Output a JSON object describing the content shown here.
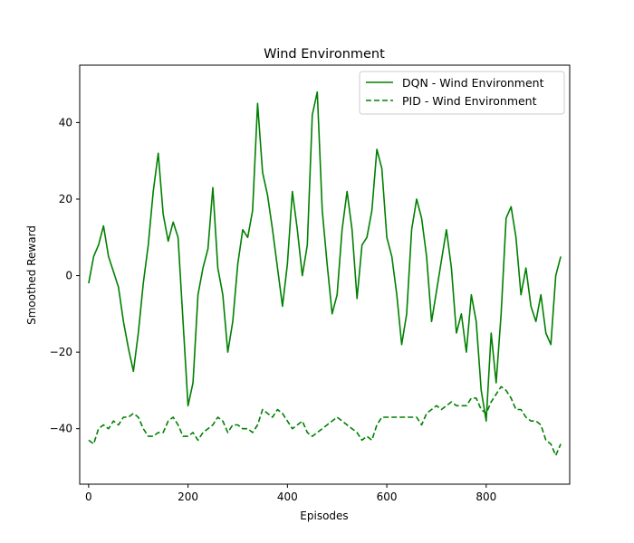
{
  "chart_data": {
    "type": "line",
    "title": "Wind Environment",
    "xlabel": "Episodes",
    "ylabel": "Smoothed Reward",
    "xlim": [
      -18,
      968
    ],
    "ylim": [
      -54.5,
      55
    ],
    "xticks": [
      0,
      200,
      400,
      600,
      800
    ],
    "yticks": [
      -40,
      -20,
      0,
      20,
      40
    ],
    "grid": false,
    "legend_position": "top-right",
    "line_color": "#008000",
    "series": [
      {
        "name": "DQN - Wind Environment",
        "style": "solid",
        "x": [
          0,
          10,
          20,
          30,
          40,
          50,
          60,
          70,
          80,
          90,
          100,
          110,
          120,
          130,
          140,
          150,
          160,
          170,
          180,
          190,
          200,
          210,
          220,
          230,
          240,
          250,
          260,
          270,
          280,
          290,
          300,
          310,
          320,
          330,
          340,
          350,
          360,
          370,
          380,
          390,
          400,
          410,
          420,
          430,
          440,
          450,
          460,
          470,
          480,
          490,
          500,
          510,
          520,
          530,
          540,
          550,
          560,
          570,
          580,
          590,
          600,
          610,
          620,
          630,
          640,
          650,
          660,
          670,
          680,
          690,
          700,
          710,
          720,
          730,
          740,
          750,
          760,
          770,
          780,
          790,
          800,
          810,
          820,
          830,
          840,
          850,
          860,
          870,
          880,
          890,
          900,
          910,
          920,
          930,
          940,
          950
        ],
        "values": [
          -2,
          5,
          8,
          13,
          5,
          1,
          -3,
          -12,
          -19,
          -25,
          -15,
          -2,
          8,
          22,
          32,
          16,
          9,
          14,
          10,
          -12,
          -34,
          -28,
          -5,
          2,
          7,
          23,
          2,
          -5,
          -20,
          -12,
          3,
          12,
          10,
          17,
          45,
          27,
          21,
          12,
          2,
          -8,
          3,
          22,
          12,
          0,
          8,
          42,
          48,
          17,
          3,
          -10,
          -5,
          12,
          22,
          12,
          -6,
          8,
          10,
          17,
          33,
          28,
          10,
          5,
          -5,
          -18,
          -10,
          12,
          20,
          15,
          5,
          -12,
          -4,
          4,
          12,
          2,
          -15,
          -10,
          -20,
          -5,
          -12,
          -30,
          -38,
          -15,
          -28,
          -10,
          15,
          18,
          10,
          -5,
          2,
          -8,
          -12,
          -5,
          -15,
          -18,
          0,
          5
        ]
      },
      {
        "name": "PID - Wind Environment",
        "style": "dashed",
        "x": [
          0,
          10,
          20,
          30,
          40,
          50,
          60,
          70,
          80,
          90,
          100,
          110,
          120,
          130,
          140,
          150,
          160,
          170,
          180,
          190,
          200,
          210,
          220,
          230,
          240,
          250,
          260,
          270,
          280,
          290,
          300,
          310,
          320,
          330,
          340,
          350,
          360,
          370,
          380,
          390,
          400,
          410,
          420,
          430,
          440,
          450,
          460,
          470,
          480,
          490,
          500,
          510,
          520,
          530,
          540,
          550,
          560,
          570,
          580,
          590,
          600,
          610,
          620,
          630,
          640,
          650,
          660,
          670,
          680,
          690,
          700,
          710,
          720,
          730,
          740,
          750,
          760,
          770,
          780,
          790,
          800,
          810,
          820,
          830,
          840,
          850,
          860,
          870,
          880,
          890,
          900,
          910,
          920,
          930,
          940,
          950
        ],
        "values": [
          -43,
          -44,
          -40,
          -39,
          -40,
          -38,
          -39,
          -37,
          -37,
          -36,
          -37,
          -40,
          -42,
          -42,
          -41,
          -41,
          -38,
          -37,
          -39,
          -42,
          -42,
          -41,
          -43,
          -41,
          -40,
          -39,
          -37,
          -38,
          -41,
          -39,
          -39,
          -40,
          -40,
          -41,
          -39,
          -35,
          -36,
          -37,
          -35,
          -36,
          -38,
          -40,
          -39,
          -38,
          -41,
          -42,
          -41,
          -40,
          -39,
          -38,
          -37,
          -38,
          -39,
          -40,
          -41,
          -43,
          -42,
          -43,
          -39,
          -37,
          -37,
          -37,
          -37,
          -37,
          -37,
          -37,
          -37,
          -39,
          -36,
          -35,
          -34,
          -35,
          -34,
          -33,
          -34,
          -34,
          -34,
          -32,
          -32,
          -35,
          -36,
          -33,
          -31,
          -29,
          -30,
          -32,
          -35,
          -35,
          -37,
          -38,
          -38,
          -39,
          -43,
          -44,
          -47,
          -44
        ]
      }
    ]
  }
}
